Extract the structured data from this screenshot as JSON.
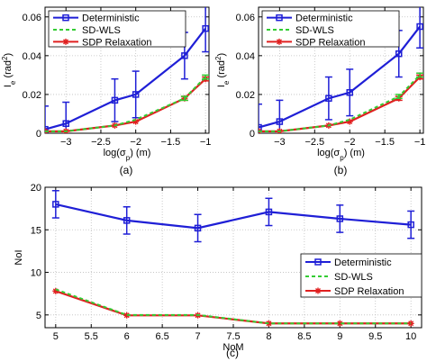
{
  "colors": {
    "deterministic": "#1f1fd6",
    "sdwls": "#33cc33",
    "sdp": "#e02020",
    "axis": "#000000",
    "grid": "#bfbfbf"
  },
  "legend_labels": [
    "Deterministic",
    "SD-WLS",
    "SDP Relaxation"
  ],
  "chart_data": [
    {
      "id": "a",
      "caption": "(a)",
      "type": "line",
      "xlabel": "log(σ",
      "xlabel_sub": "p",
      "xlabel_end": ") (m)",
      "ylabel": "I",
      "ylabel_sub": "e",
      "ylabel_rest": " (rad",
      "ylabel_sup": "2",
      "ylabel_end": ")",
      "xlim": [
        -3.3,
        -0.95
      ],
      "ylim": [
        0,
        0.065
      ],
      "xticks": [
        -3,
        -2.5,
        -2,
        -1.5,
        -1
      ],
      "xtick_labels": [
        "−3",
        "−2.5",
        "−2",
        "−1.5",
        "−1"
      ],
      "yticks": [
        0,
        0.02,
        0.04,
        0.06
      ],
      "ytick_labels": [
        "0",
        "0.02",
        "0.04",
        "0.06"
      ],
      "grid": true,
      "legend": "top-left",
      "x": [
        -3.3,
        -3,
        -2.3,
        -2,
        -1.3,
        -1
      ],
      "series": [
        {
          "name": "Deterministic",
          "values": [
            0.002,
            0.005,
            0.017,
            0.02,
            0.04,
            0.054
          ],
          "err": [
            0.012,
            0.011,
            0.011,
            0.012,
            0.012,
            0.012
          ],
          "marker": "square"
        },
        {
          "name": "SD-WLS",
          "values": [
            0.001,
            0.001,
            0.004,
            0.007,
            0.018,
            0.029
          ],
          "err": [
            0,
            0,
            0,
            0,
            0.001,
            0.001
          ],
          "marker": "none",
          "dashed": true
        },
        {
          "name": "SDP Relaxation",
          "values": [
            0.001,
            0.001,
            0.004,
            0.006,
            0.018,
            0.028
          ],
          "err": [
            0,
            0,
            0,
            0,
            0.001,
            0.001
          ],
          "marker": "star"
        }
      ]
    },
    {
      "id": "b",
      "caption": "(b)",
      "type": "line",
      "xlabel": "log(σ",
      "xlabel_sub": "p",
      "xlabel_end": ") (m)",
      "ylabel": "I",
      "ylabel_sub": "e",
      "ylabel_rest": " (rad",
      "ylabel_sup": "2",
      "ylabel_end": ")",
      "xlim": [
        -3.3,
        -0.95
      ],
      "ylim": [
        0,
        0.065
      ],
      "xticks": [
        -3,
        -2.5,
        -2,
        -1.5,
        -1
      ],
      "xtick_labels": [
        "−3",
        "−2.5",
        "−2",
        "−1.5",
        "−1"
      ],
      "yticks": [
        0,
        0.02,
        0.04,
        0.06
      ],
      "ytick_labels": [
        "0",
        "0.02",
        "0.04",
        "0.06"
      ],
      "grid": true,
      "legend": "top-left",
      "x": [
        -3.3,
        -3,
        -2.3,
        -2,
        -1.3,
        -1
      ],
      "series": [
        {
          "name": "Deterministic",
          "values": [
            0.003,
            0.006,
            0.018,
            0.021,
            0.041,
            0.055
          ],
          "err": [
            0.012,
            0.011,
            0.011,
            0.012,
            0.012,
            0.011
          ],
          "marker": "square"
        },
        {
          "name": "SD-WLS",
          "values": [
            0.001,
            0.001,
            0.004,
            0.007,
            0.019,
            0.03
          ],
          "err": [
            0,
            0,
            0,
            0,
            0.001,
            0.001
          ],
          "marker": "none",
          "dashed": true
        },
        {
          "name": "SDP Relaxation",
          "values": [
            0.001,
            0.001,
            0.004,
            0.006,
            0.018,
            0.029
          ],
          "err": [
            0,
            0,
            0,
            0,
            0.001,
            0.001
          ],
          "marker": "star"
        }
      ]
    },
    {
      "id": "c",
      "caption": "(c)",
      "type": "line",
      "xlabel": "NoM",
      "ylabel": "NoI",
      "xlim": [
        4.85,
        10.15
      ],
      "ylim": [
        3.5,
        20
      ],
      "xticks": [
        5,
        5.5,
        6,
        6.5,
        7,
        7.5,
        8,
        8.5,
        9,
        9.5,
        10
      ],
      "xtick_labels": [
        "5",
        "5.5",
        "6",
        "6.5",
        "7",
        "7.5",
        "8",
        "8.5",
        "9",
        "9.5",
        "10"
      ],
      "yticks": [
        5,
        10,
        15,
        20
      ],
      "ytick_labels": [
        "5",
        "10",
        "15",
        "20"
      ],
      "grid": true,
      "legend": "center-right",
      "x": [
        5,
        6,
        7,
        8,
        9,
        10
      ],
      "series": [
        {
          "name": "Deterministic",
          "values": [
            18.0,
            16.1,
            15.2,
            17.1,
            16.3,
            15.6
          ],
          "err": [
            1.6,
            1.6,
            1.6,
            1.6,
            1.6,
            1.6
          ],
          "marker": "square"
        },
        {
          "name": "SD-WLS",
          "values": [
            8.0,
            5.0,
            5.0,
            4.0,
            4.0,
            4.0
          ],
          "err": [
            0,
            0,
            0,
            0,
            0,
            0
          ],
          "marker": "none",
          "dashed": true
        },
        {
          "name": "SDP Relaxation",
          "values": [
            7.8,
            4.95,
            4.95,
            4.0,
            4.0,
            4.0
          ],
          "err": [
            0,
            0,
            0,
            0,
            0,
            0
          ],
          "marker": "star"
        }
      ]
    }
  ]
}
